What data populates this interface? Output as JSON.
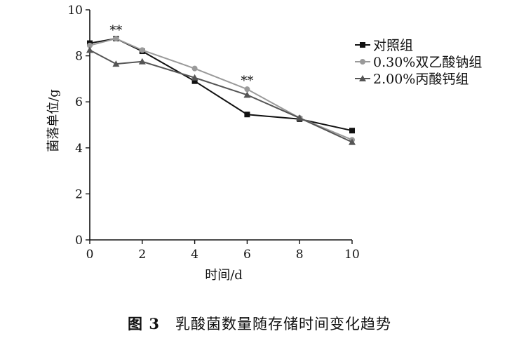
{
  "chart_data": {
    "type": "line",
    "x": [
      0,
      1,
      2,
      4,
      6,
      8,
      10
    ],
    "xlim": [
      0,
      10
    ],
    "ylim": [
      0,
      10
    ],
    "xticks": [
      "0",
      "2",
      "4",
      "6",
      "8",
      "10"
    ],
    "yticks": [
      "0",
      "2",
      "4",
      "6",
      "8",
      "10"
    ],
    "xlabel": "时间/d",
    "ylabel": "菌落单位/g",
    "legend_position": "top-right",
    "grid": false,
    "series": [
      {
        "name": "对照组",
        "color": "#111111",
        "marker": "square",
        "values": [
          8.55,
          8.75,
          8.2,
          6.9,
          5.45,
          5.25,
          4.75
        ]
      },
      {
        "name": "0.30%双乙酸钠组",
        "color": "#9a9a9a",
        "marker": "circle",
        "values": [
          8.45,
          8.75,
          8.25,
          7.45,
          6.55,
          5.3,
          4.35
        ]
      },
      {
        "name": "2.00%丙酸钙组",
        "color": "#555555",
        "marker": "triangle",
        "values": [
          8.25,
          7.65,
          7.75,
          7.05,
          6.3,
          5.3,
          4.25
        ]
      }
    ],
    "annotations": [
      {
        "text": "**",
        "x": 1,
        "y": 8.75
      },
      {
        "text": "**",
        "x": 6,
        "y": 6.55
      }
    ]
  },
  "caption": {
    "number": "图 3",
    "text": "乳酸菌数量随存储时间变化趋势"
  }
}
